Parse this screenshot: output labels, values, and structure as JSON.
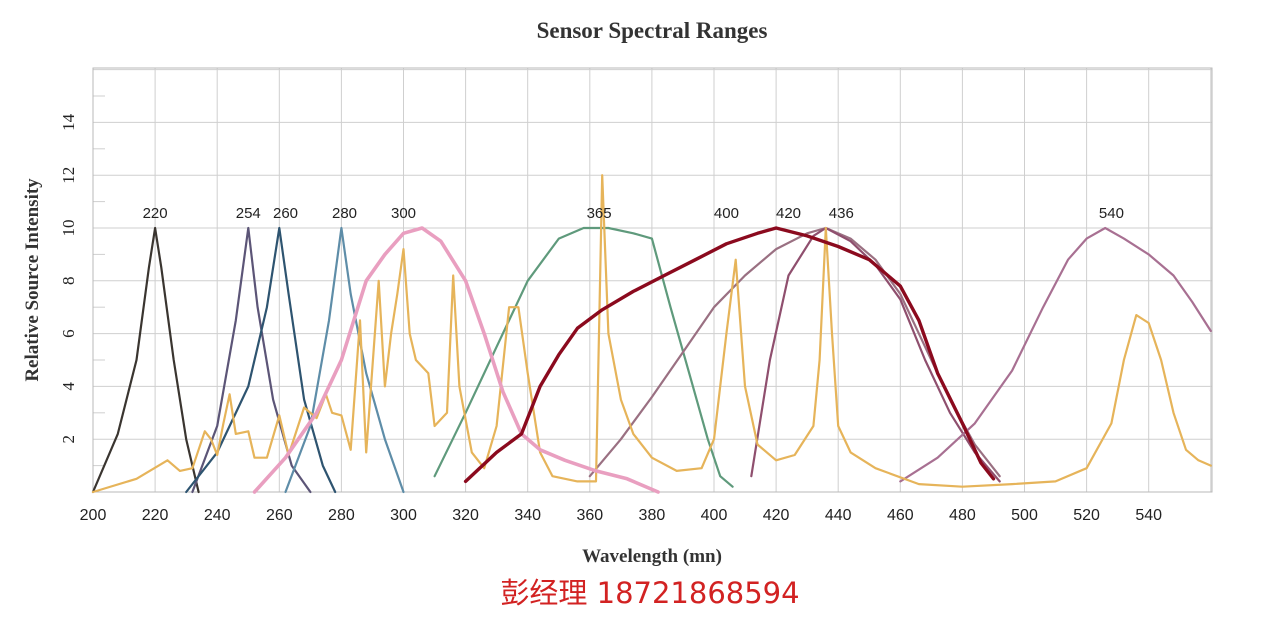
{
  "chart_data": {
    "type": "line",
    "title": "Sensor Spectral Ranges",
    "xlabel": "Wavelength (mn)",
    "ylabel": "Relative Source Intensity",
    "xlim": [
      200,
      560
    ],
    "ylim": [
      0,
      16
    ],
    "x_ticks": [
      200,
      220,
      240,
      260,
      280,
      300,
      320,
      340,
      360,
      380,
      400,
      420,
      440,
      460,
      480,
      500,
      520,
      540
    ],
    "y_ticks": [
      2,
      4,
      6,
      8,
      10,
      12,
      14
    ],
    "grid": true,
    "peak_labels": [
      {
        "text": "220",
        "x": 220
      },
      {
        "text": "254",
        "x": 250
      },
      {
        "text": "260",
        "x": 262
      },
      {
        "text": "280",
        "x": 281
      },
      {
        "text": "300",
        "x": 300
      },
      {
        "text": "365",
        "x": 363
      },
      {
        "text": "400",
        "x": 404
      },
      {
        "text": "420",
        "x": 424
      },
      {
        "text": "436",
        "x": 441
      },
      {
        "text": "540",
        "x": 528
      }
    ],
    "series": [
      {
        "color": "#3a3530",
        "width": 2.2,
        "points": [
          [
            200,
            0
          ],
          [
            208,
            2.2
          ],
          [
            214,
            5
          ],
          [
            218,
            8.5
          ],
          [
            220,
            10
          ],
          [
            222,
            8.5
          ],
          [
            226,
            5
          ],
          [
            230,
            2
          ],
          [
            234,
            0
          ]
        ]
      },
      {
        "color": "#5c5577",
        "width": 2.2,
        "points": [
          [
            232,
            0
          ],
          [
            240,
            2.5
          ],
          [
            246,
            6.5
          ],
          [
            250,
            10
          ],
          [
            253,
            7
          ],
          [
            258,
            3.5
          ],
          [
            264,
            1
          ],
          [
            270,
            0
          ]
        ]
      },
      {
        "color": "#2e5470",
        "width": 2.2,
        "points": [
          [
            230,
            0
          ],
          [
            240,
            1.5
          ],
          [
            250,
            4
          ],
          [
            256,
            7
          ],
          [
            260,
            10
          ],
          [
            263,
            7.5
          ],
          [
            268,
            3.5
          ],
          [
            274,
            1
          ],
          [
            278,
            0
          ]
        ]
      },
      {
        "color": "#5e8da8",
        "width": 2.2,
        "points": [
          [
            262,
            0
          ],
          [
            270,
            2.5
          ],
          [
            276,
            6.5
          ],
          [
            280,
            10
          ],
          [
            283,
            7.5
          ],
          [
            288,
            4.5
          ],
          [
            294,
            2
          ],
          [
            300,
            0
          ]
        ]
      },
      {
        "color": "#5f9a7c",
        "width": 2.2,
        "points": [
          [
            310,
            0.6
          ],
          [
            320,
            3
          ],
          [
            330,
            5.5
          ],
          [
            340,
            8
          ],
          [
            350,
            9.6
          ],
          [
            358,
            10
          ],
          [
            366,
            10
          ],
          [
            374,
            9.8
          ],
          [
            380,
            9.6
          ],
          [
            386,
            7
          ],
          [
            392,
            4.5
          ],
          [
            398,
            2
          ],
          [
            402,
            0.6
          ],
          [
            406,
            0.2
          ]
        ]
      },
      {
        "color": "#9a7082",
        "width": 2.2,
        "points": [
          [
            360,
            0.6
          ],
          [
            370,
            2
          ],
          [
            380,
            3.6
          ],
          [
            390,
            5.3
          ],
          [
            400,
            7
          ],
          [
            410,
            8.2
          ],
          [
            420,
            9.2
          ],
          [
            430,
            9.8
          ],
          [
            436,
            10
          ],
          [
            444,
            9.6
          ],
          [
            452,
            8.8
          ],
          [
            460,
            7.5
          ],
          [
            468,
            5.5
          ],
          [
            476,
            3.5
          ],
          [
            484,
            1.8
          ],
          [
            492,
            0.6
          ]
        ]
      },
      {
        "color": "#8f4f6e",
        "width": 2.2,
        "points": [
          [
            412,
            0.6
          ],
          [
            418,
            5
          ],
          [
            424,
            8.2
          ],
          [
            432,
            9.7
          ],
          [
            436,
            10
          ],
          [
            444,
            9.5
          ],
          [
            452,
            8.6
          ],
          [
            460,
            7.3
          ],
          [
            468,
            5
          ],
          [
            476,
            3
          ],
          [
            484,
            1.5
          ],
          [
            492,
            0.4
          ]
        ]
      },
      {
        "color": "#a87092",
        "width": 2.2,
        "points": [
          [
            460,
            0.4
          ],
          [
            472,
            1.3
          ],
          [
            484,
            2.6
          ],
          [
            496,
            4.6
          ],
          [
            506,
            7
          ],
          [
            514,
            8.8
          ],
          [
            520,
            9.6
          ],
          [
            526,
            10
          ],
          [
            532,
            9.6
          ],
          [
            540,
            9
          ],
          [
            548,
            8.2
          ],
          [
            554,
            7.2
          ],
          [
            560,
            6.1
          ]
        ]
      },
      {
        "color": "#e6b45a",
        "width": 2.2,
        "points": [
          [
            200,
            0
          ],
          [
            214,
            0.5
          ],
          [
            224,
            1.2
          ],
          [
            228,
            0.8
          ],
          [
            232,
            0.9
          ],
          [
            236,
            2.3
          ],
          [
            238,
            2
          ],
          [
            240,
            1.4
          ],
          [
            242,
            2.6
          ],
          [
            244,
            3.7
          ],
          [
            246,
            2.2
          ],
          [
            250,
            2.3
          ],
          [
            252,
            1.3
          ],
          [
            256,
            1.3
          ],
          [
            260,
            2.9
          ],
          [
            263,
            1.4
          ],
          [
            268,
            3.2
          ],
          [
            272,
            2.8
          ],
          [
            275,
            3.7
          ],
          [
            277,
            3
          ],
          [
            280,
            2.9
          ],
          [
            283,
            1.6
          ],
          [
            286,
            6.5
          ],
          [
            288,
            1.5
          ],
          [
            292,
            8
          ],
          [
            294,
            4
          ],
          [
            296,
            6
          ],
          [
            298,
            7.5
          ],
          [
            300,
            9.2
          ],
          [
            302,
            6
          ],
          [
            304,
            5
          ],
          [
            308,
            4.5
          ],
          [
            310,
            2.5
          ],
          [
            314,
            3
          ],
          [
            316,
            8.2
          ],
          [
            318,
            4
          ],
          [
            322,
            1.5
          ],
          [
            326,
            0.9
          ],
          [
            330,
            2.5
          ],
          [
            334,
            7
          ],
          [
            337,
            7
          ],
          [
            340,
            4.5
          ],
          [
            344,
            1.5
          ],
          [
            348,
            0.6
          ],
          [
            356,
            0.4
          ],
          [
            362,
            0.4
          ],
          [
            364,
            12
          ],
          [
            366,
            6
          ],
          [
            370,
            3.5
          ],
          [
            374,
            2.2
          ],
          [
            380,
            1.3
          ],
          [
            388,
            0.8
          ],
          [
            396,
            0.9
          ],
          [
            400,
            2
          ],
          [
            404,
            6
          ],
          [
            407,
            8.8
          ],
          [
            410,
            4
          ],
          [
            414,
            1.8
          ],
          [
            420,
            1.2
          ],
          [
            426,
            1.4
          ],
          [
            432,
            2.5
          ],
          [
            434,
            5
          ],
          [
            436,
            10
          ],
          [
            438,
            6
          ],
          [
            440,
            2.5
          ],
          [
            444,
            1.5
          ],
          [
            452,
            0.9
          ],
          [
            466,
            0.3
          ],
          [
            480,
            0.2
          ],
          [
            496,
            0.3
          ],
          [
            510,
            0.4
          ],
          [
            520,
            0.9
          ],
          [
            528,
            2.6
          ],
          [
            532,
            5
          ],
          [
            536,
            6.7
          ],
          [
            540,
            6.4
          ],
          [
            544,
            5
          ],
          [
            548,
            3
          ],
          [
            552,
            1.6
          ],
          [
            556,
            1.2
          ],
          [
            560,
            1
          ]
        ]
      },
      {
        "color": "#e99fc0",
        "width": 3.6,
        "points": [
          [
            252,
            0
          ],
          [
            262,
            1.3
          ],
          [
            272,
            3
          ],
          [
            280,
            5
          ],
          [
            288,
            8
          ],
          [
            294,
            9
          ],
          [
            300,
            9.8
          ],
          [
            306,
            10
          ],
          [
            312,
            9.5
          ],
          [
            320,
            8
          ],
          [
            326,
            6
          ],
          [
            332,
            3.8
          ],
          [
            338,
            2.2
          ],
          [
            344,
            1.6
          ],
          [
            352,
            1.2
          ],
          [
            362,
            0.8
          ],
          [
            372,
            0.5
          ],
          [
            382,
            0
          ]
        ]
      },
      {
        "color": "#8b0a1e",
        "width": 3.4,
        "points": [
          [
            320,
            0.4
          ],
          [
            330,
            1.5
          ],
          [
            338,
            2.2
          ],
          [
            344,
            4
          ],
          [
            350,
            5.2
          ],
          [
            356,
            6.2
          ],
          [
            364,
            6.9
          ],
          [
            374,
            7.6
          ],
          [
            384,
            8.2
          ],
          [
            394,
            8.8
          ],
          [
            404,
            9.4
          ],
          [
            414,
            9.8
          ],
          [
            420,
            10
          ],
          [
            430,
            9.7
          ],
          [
            440,
            9.3
          ],
          [
            450,
            8.8
          ],
          [
            460,
            7.8
          ],
          [
            466,
            6.5
          ],
          [
            472,
            4.5
          ],
          [
            480,
            2.6
          ],
          [
            486,
            1.1
          ],
          [
            490,
            0.5
          ]
        ]
      }
    ]
  },
  "contact": "彭经理 18721868594"
}
